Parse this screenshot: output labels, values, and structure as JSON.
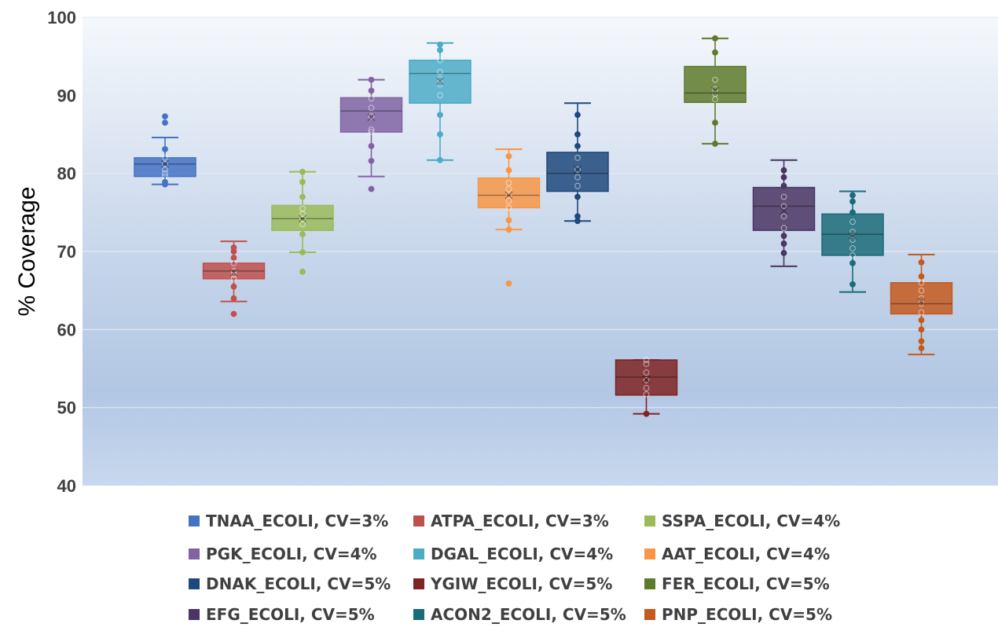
{
  "chart_data": {
    "type": "box",
    "ylabel": "% Coverage",
    "xlabel": "",
    "ylim": [
      40,
      100
    ],
    "yticks": [
      "40",
      "50",
      "60",
      "70",
      "80",
      "90",
      "100"
    ],
    "grid": true,
    "legend_position": "bottom",
    "series": [
      {
        "name": "TNAA_ECOLI, CV=3%",
        "color": "#4472C4",
        "min": 78.6,
        "q1": 79.6,
        "median": 81.2,
        "q3": 82.0,
        "max": 84.6,
        "mean": 81.2,
        "points": [
          87.3,
          86.5,
          83.1,
          82.0,
          81.2,
          80.5,
          80.0,
          79.6,
          78.9,
          78.6
        ]
      },
      {
        "name": "ATPA_ECOLI, CV=3%",
        "color": "#C0504D",
        "min": 63.6,
        "q1": 66.5,
        "median": 67.5,
        "q3": 68.5,
        "max": 71.3,
        "mean": 67.3,
        "points": [
          70.5,
          70.0,
          69.2,
          68.5,
          67.5,
          67.0,
          66.5,
          65.5,
          64.0,
          62.0
        ]
      },
      {
        "name": "SSPA_ECOLI, CV=4%",
        "color": "#9BBB59",
        "min": 69.9,
        "q1": 72.7,
        "median": 74.2,
        "q3": 75.9,
        "max": 80.2,
        "mean": 74.2,
        "points": [
          80.2,
          78.9,
          77.0,
          75.5,
          74.8,
          74.2,
          73.5,
          72.2,
          69.9,
          67.4
        ]
      },
      {
        "name": "PGK_ECOLI, CV=4%",
        "color": "#8064A2",
        "min": 79.6,
        "q1": 85.3,
        "median": 88.0,
        "q3": 89.7,
        "max": 92.0,
        "mean": 87.2,
        "points": [
          92.0,
          90.6,
          89.6,
          88.4,
          87.3,
          85.6,
          85.3,
          83.5,
          81.6,
          78.0
        ]
      },
      {
        "name": "DGAL_ECOLI, CV=4%",
        "color": "#4BACC6",
        "min": 81.7,
        "q1": 89.0,
        "median": 92.8,
        "q3": 94.5,
        "max": 96.7,
        "mean": 91.8,
        "points": [
          96.5,
          95.8,
          94.5,
          93.0,
          92.1,
          91.4,
          90.0,
          87.5,
          85.0,
          81.7
        ]
      },
      {
        "name": "AAT_ECOLI, CV=4%",
        "color": "#F79646",
        "min": 72.8,
        "q1": 75.6,
        "median": 77.2,
        "q3": 79.4,
        "max": 83.1,
        "mean": 77.2,
        "points": [
          82.2,
          80.4,
          78.8,
          78.0,
          77.2,
          76.5,
          75.6,
          74.0,
          72.8,
          65.9
        ]
      },
      {
        "name": "DNAK_ECOLI, CV=5%",
        "color": "#1F497D",
        "min": 73.9,
        "q1": 77.7,
        "median": 80.0,
        "q3": 82.7,
        "max": 89.0,
        "mean": 80.5,
        "points": [
          87.5,
          85.0,
          83.5,
          82.0,
          80.5,
          79.5,
          78.4,
          77.0,
          74.5,
          73.9
        ]
      },
      {
        "name": "YGIW_ECOLI, CV=5%",
        "color": "#7F2323",
        "min": 49.2,
        "q1": 51.6,
        "median": 53.9,
        "q3": 56.1,
        "max": 56.1,
        "mean": 53.6,
        "points": [
          56.1,
          55.6,
          54.5,
          53.5,
          52.5,
          51.7,
          49.2
        ]
      },
      {
        "name": "FER_ECOLI, CV=5%",
        "color": "#5E7A2C",
        "min": 83.8,
        "q1": 89.1,
        "median": 90.3,
        "q3": 93.7,
        "max": 97.3,
        "mean": 90.6,
        "points": [
          97.3,
          95.5,
          92.0,
          90.8,
          90.2,
          89.5,
          86.5,
          83.8
        ]
      },
      {
        "name": "EFG_ECOLI, CV=5%",
        "color": "#4A3563",
        "min": 68.1,
        "q1": 72.7,
        "median": 75.8,
        "q3": 78.2,
        "max": 81.7,
        "mean": 75.2,
        "points": [
          80.4,
          79.5,
          78.4,
          77.0,
          75.8,
          74.5,
          73.0,
          72.0,
          71.0,
          69.8
        ]
      },
      {
        "name": "ACON2_ECOLI, CV=5%",
        "color": "#1B6B78",
        "min": 64.8,
        "q1": 69.5,
        "median": 72.2,
        "q3": 74.8,
        "max": 77.7,
        "mean": 72.0,
        "points": [
          77.2,
          76.4,
          75.0,
          73.8,
          72.5,
          71.5,
          70.4,
          69.5,
          68.5,
          65.8
        ]
      },
      {
        "name": "PNP_ECOLI, CV=5%",
        "color": "#C55A1E",
        "min": 56.8,
        "q1": 62.0,
        "median": 63.3,
        "q3": 66.0,
        "max": 69.6,
        "mean": 63.6,
        "points": [
          68.6,
          66.8,
          66.0,
          65.0,
          64.0,
          63.3,
          62.2,
          61.2,
          60.0,
          58.5,
          57.6
        ]
      }
    ]
  }
}
